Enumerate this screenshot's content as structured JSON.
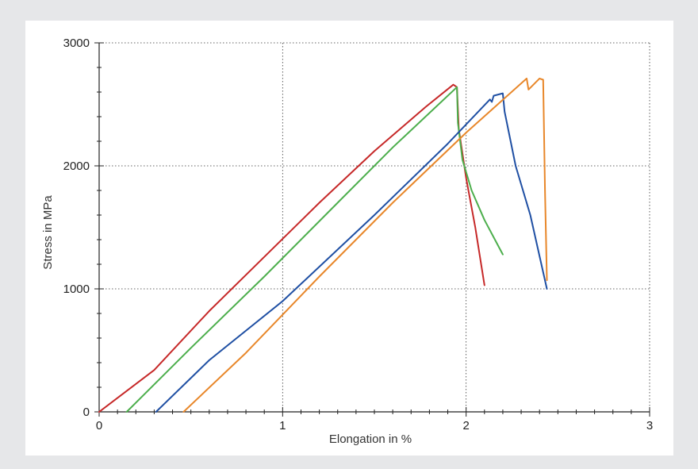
{
  "chart_data": {
    "type": "line",
    "title": "",
    "xlabel": "Elongation in %",
    "ylabel": "Stress in MPa",
    "xlim": [
      0,
      3
    ],
    "ylim": [
      0,
      3000
    ],
    "xticks": [
      "0",
      "1",
      "2",
      "3"
    ],
    "yticks": [
      "0",
      "1000",
      "2000",
      "3000"
    ],
    "grid": true,
    "series": [
      {
        "color": "#c62828",
        "points": [
          [
            0,
            0
          ],
          [
            0.3,
            340
          ],
          [
            0.6,
            820
          ],
          [
            0.9,
            1260
          ],
          [
            1.2,
            1700
          ],
          [
            1.5,
            2120
          ],
          [
            1.78,
            2480
          ],
          [
            1.93,
            2660
          ],
          [
            1.95,
            2640
          ],
          [
            1.96,
            2300
          ],
          [
            2.0,
            1900
          ],
          [
            2.05,
            1500
          ],
          [
            2.1,
            1030
          ]
        ]
      },
      {
        "color": "#4cae4c",
        "points": [
          [
            0.15,
            0
          ],
          [
            0.5,
            520
          ],
          [
            0.9,
            1100
          ],
          [
            1.3,
            1700
          ],
          [
            1.6,
            2150
          ],
          [
            1.95,
            2640
          ],
          [
            1.955,
            2350
          ],
          [
            1.98,
            2050
          ],
          [
            2.03,
            1800
          ],
          [
            2.1,
            1560
          ],
          [
            2.2,
            1280
          ]
        ]
      },
      {
        "color": "#1f4fa3",
        "points": [
          [
            0.31,
            0
          ],
          [
            0.6,
            420
          ],
          [
            1.0,
            900
          ],
          [
            1.5,
            1600
          ],
          [
            1.9,
            2180
          ],
          [
            2.13,
            2540
          ],
          [
            2.14,
            2520
          ],
          [
            2.15,
            2570
          ],
          [
            2.2,
            2590
          ],
          [
            2.21,
            2440
          ],
          [
            2.27,
            2000
          ],
          [
            2.35,
            1600
          ],
          [
            2.44,
            1000
          ]
        ]
      },
      {
        "color": "#e8872a",
        "points": [
          [
            0.46,
            0
          ],
          [
            0.8,
            480
          ],
          [
            1.2,
            1100
          ],
          [
            1.6,
            1700
          ],
          [
            2.0,
            2270
          ],
          [
            2.33,
            2710
          ],
          [
            2.34,
            2620
          ],
          [
            2.4,
            2710
          ],
          [
            2.42,
            2700
          ],
          [
            2.43,
            1800
          ],
          [
            2.44,
            1070
          ]
        ]
      }
    ]
  }
}
